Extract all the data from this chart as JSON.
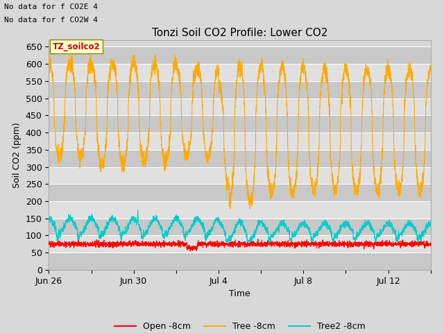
{
  "title": "Tonzi Soil CO2 Profile: Lower CO2",
  "xlabel": "Time",
  "ylabel": "Soil CO2 (ppm)",
  "note_line1": "No data for f CO2E 4",
  "note_line2": "No data for f CO2W 4",
  "watermark": "TZ_soilco2",
  "ylim": [
    0,
    670
  ],
  "yticks": [
    0,
    50,
    100,
    150,
    200,
    250,
    300,
    350,
    400,
    450,
    500,
    550,
    600,
    650
  ],
  "legend_labels": [
    "Open -8cm",
    "Tree -8cm",
    "Tree2 -8cm"
  ],
  "legend_colors": [
    "#ff0000",
    "#ffaa00",
    "#00cccc"
  ],
  "bg_color": "#e0e0e0",
  "title_fontsize": 11,
  "axis_fontsize": 9,
  "n_days": 19,
  "pts_per_day": 144,
  "xtick_positions": [
    0,
    2,
    4,
    6,
    8,
    10,
    12,
    14,
    16,
    18
  ],
  "xtick_labels": [
    "Jun 26",
    "",
    "Jun 30",
    "",
    "Jul 4",
    "",
    "Jul 8",
    "",
    "Jul 12",
    ""
  ]
}
